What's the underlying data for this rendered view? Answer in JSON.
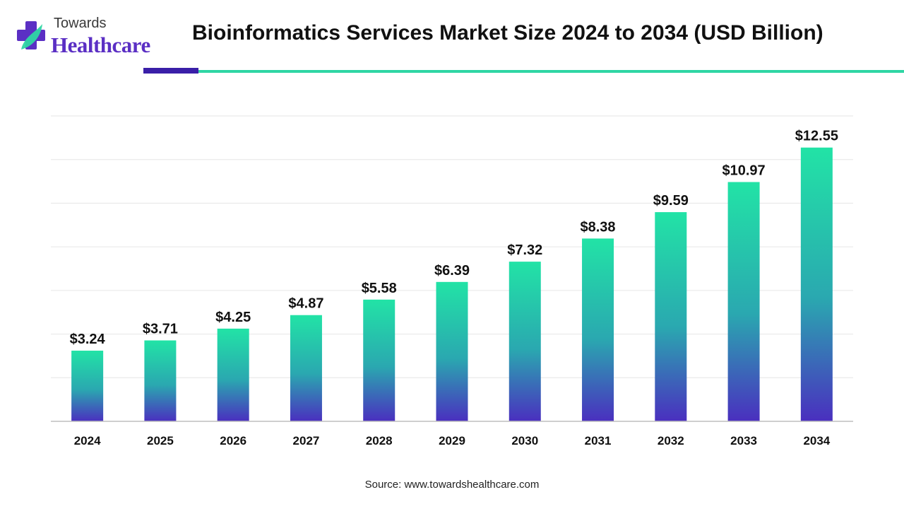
{
  "brand": {
    "name_top": "Towards",
    "name_bottom": "Healthcare",
    "colors": {
      "purple": "#5b2fc4",
      "teal": "#2fd6a4",
      "dark_purple": "#3a1fa8"
    }
  },
  "source_text": "Source: www.towardshealthcare.com",
  "chart_data": {
    "type": "bar",
    "title": "Bioinformatics Services Market Size 2024 to 2034 (USD Billion)",
    "xlabel": "",
    "ylabel": "",
    "categories": [
      "2024",
      "2025",
      "2026",
      "2027",
      "2028",
      "2029",
      "2030",
      "2031",
      "2032",
      "2033",
      "2034"
    ],
    "values": [
      3.24,
      3.71,
      4.25,
      4.87,
      5.58,
      6.39,
      7.32,
      8.38,
      9.59,
      10.97,
      12.55
    ],
    "value_labels": [
      "$3.24",
      "$3.71",
      "$4.25",
      "$4.87",
      "$5.58",
      "$6.39",
      "$7.32",
      "$8.38",
      "$9.59",
      "$10.97",
      "$12.55"
    ],
    "ylim": [
      0,
      14
    ],
    "grid": true,
    "legend": "none",
    "bar_gradient": {
      "top": "#22e3a6",
      "middle": "#2aa8b0",
      "bottom": "#4a2fbf"
    }
  }
}
